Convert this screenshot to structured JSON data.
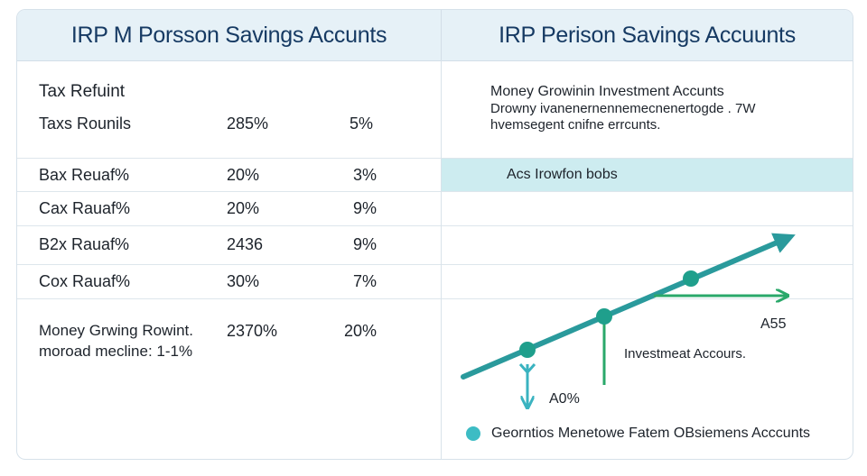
{
  "header": {
    "left_title": "IRP  M Porsson Savings Accunts",
    "right_title": "IRP  Perison Savings Accuunts"
  },
  "table": {
    "section_label": "Tax Refuint",
    "rows": [
      {
        "label": "Taxs  Rounils",
        "v1": "285%",
        "v2": "5%"
      },
      {
        "label": "Bax  Reuaf%",
        "v1": "20%",
        "v2": "3%"
      },
      {
        "label": "Cax  Rauaf%",
        "v1": "20%",
        "v2": "9%"
      },
      {
        "label": "B2x  Rauaf%",
        "v1": "2436",
        "v2": "9%"
      },
      {
        "label": "Cox  Rauaf%",
        "v1": "30%",
        "v2": "7%"
      }
    ],
    "summary": {
      "line1": "Money Grwing Rowint.",
      "line2": "moroad mecline:  1-1%",
      "v1": "2370%",
      "v2": "20%"
    }
  },
  "right_panel": {
    "desc_title": "Money Growinin Investment Accunts",
    "desc_line2": "Drowny  ivanenernennemecnenertogde . 7W",
    "desc_line3": "hvemsegent cnifne errcunts.",
    "band_label": "Acs Irowfon bobs"
  },
  "chart_data": {
    "type": "line",
    "points_label_a": "A55",
    "points_label_b": "A0%",
    "annotation": "Investmeat Accours.",
    "legend": "Georntios Menetowe Fatem OBsiemens Acccunts",
    "colors": {
      "trend": "#2a9a9c",
      "markers": "#1f9f8c",
      "arrow_green": "#2aa86a",
      "arrow_blue": "#3ab3c0",
      "legend_dot": "#3dbcc4"
    }
  }
}
